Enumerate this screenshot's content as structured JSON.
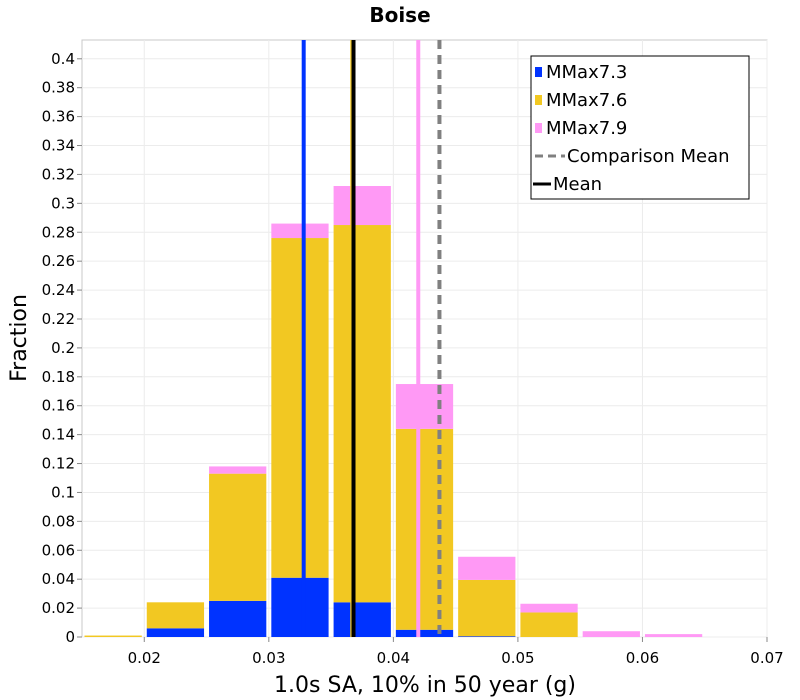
{
  "chart_data": {
    "type": "bar",
    "stacked": true,
    "title": "Boise",
    "xlabel": "1.0s SA, 10% in 50 year (g)",
    "ylabel": "Fraction",
    "xlim": [
      0.015,
      0.07
    ],
    "ylim": [
      0,
      0.413
    ],
    "x_ticks": [
      "0.02",
      "0.03",
      "0.04",
      "0.05",
      "0.06",
      "0.07"
    ],
    "y_ticks": [
      "0",
      "0.02",
      "0.04",
      "0.06",
      "0.08",
      "0.1",
      "0.12",
      "0.14",
      "0.16",
      "0.18",
      "0.2",
      "0.22",
      "0.24",
      "0.26",
      "0.28",
      "0.3",
      "0.32",
      "0.34",
      "0.36",
      "0.38",
      "0.4"
    ],
    "bin_width": 0.005,
    "bin_centers": [
      0.0175,
      0.0225,
      0.0275,
      0.0325,
      0.0375,
      0.0425,
      0.0475,
      0.0525,
      0.0575,
      0.0625,
      0.0675
    ],
    "series": [
      {
        "name": "MMax7.3",
        "color": "#0033ff",
        "values": [
          0.0,
          0.006,
          0.025,
          0.041,
          0.024,
          0.005,
          0.0005,
          0.0,
          0.0,
          0.0,
          0.0
        ]
      },
      {
        "name": "MMax7.6",
        "color": "#f2c822",
        "values": [
          0.001,
          0.018,
          0.088,
          0.235,
          0.261,
          0.139,
          0.039,
          0.017,
          0.0,
          0.0,
          0.0
        ]
      },
      {
        "name": "MMax7.9",
        "color": "#ff99f5",
        "values": [
          0.0,
          0.0,
          0.005,
          0.01,
          0.027,
          0.031,
          0.016,
          0.006,
          0.004,
          0.002,
          0.0
        ]
      }
    ],
    "vertical_lines": [
      {
        "series": "MMax7.3",
        "x": 0.0328,
        "color": "#0033ff",
        "style": "solid"
      },
      {
        "series": "MMax7.6",
        "x": 0.0367,
        "color": "#f2c822",
        "style": "solid"
      },
      {
        "series": "MMax7.9",
        "x": 0.042,
        "color": "#ff99f5",
        "style": "solid"
      },
      {
        "series": "Comparison Mean",
        "x": 0.0437,
        "color": "#808080",
        "style": "dashed"
      },
      {
        "series": "Mean",
        "x": 0.0368,
        "color": "#000000",
        "style": "solid"
      }
    ],
    "legend": {
      "position": "top-right",
      "entries": [
        {
          "label": "MMax7.3",
          "color": "#0033ff",
          "kind": "box"
        },
        {
          "label": "MMax7.6",
          "color": "#f2c822",
          "kind": "box"
        },
        {
          "label": "MMax7.9",
          "color": "#ff99f5",
          "kind": "box"
        },
        {
          "label": "Comparison Mean",
          "color": "#808080",
          "kind": "dashed"
        },
        {
          "label": "Mean",
          "color": "#000000",
          "kind": "line"
        }
      ]
    },
    "grid": true
  }
}
